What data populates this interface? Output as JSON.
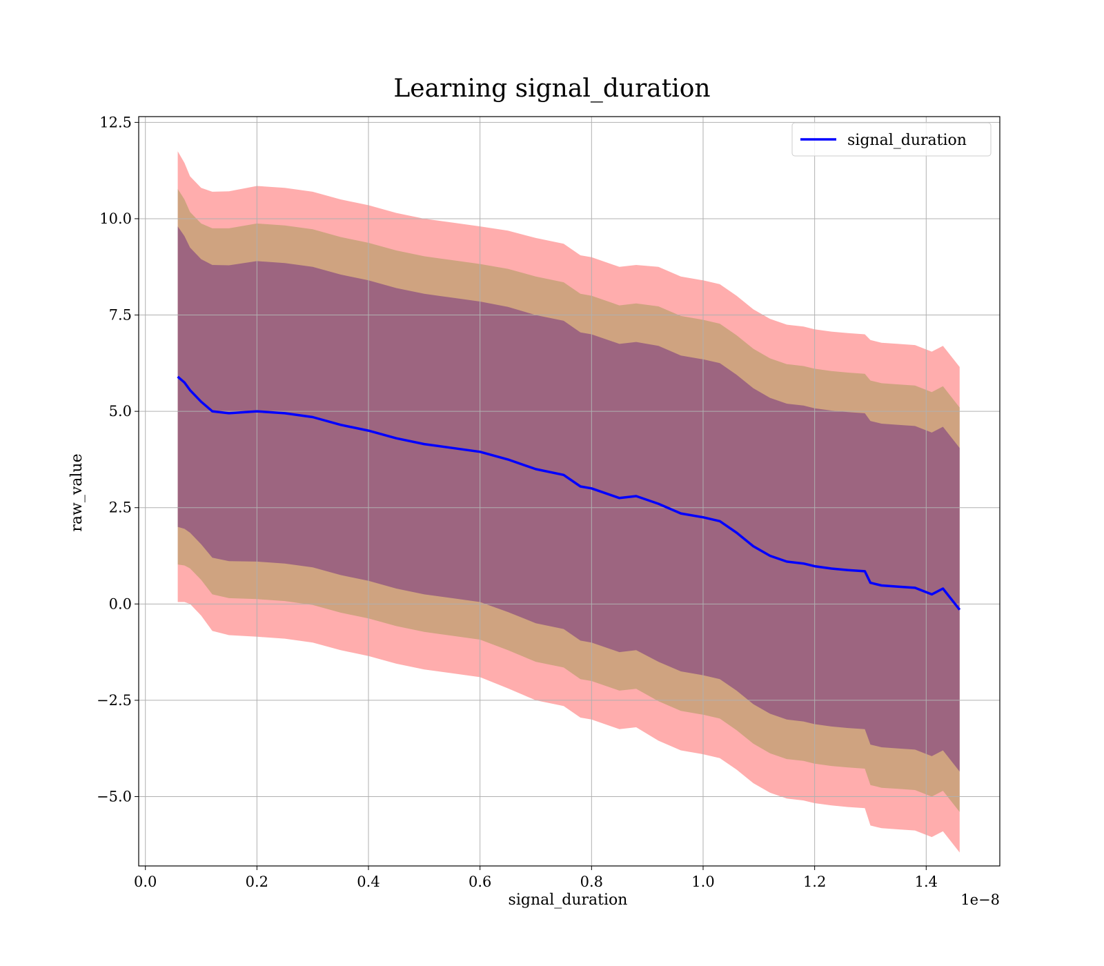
{
  "chart_data": {
    "type": "line",
    "title": "Learning signal_duration",
    "xlabel": "signal_duration",
    "ylabel": "raw_value",
    "x_offset_text": "1e−8",
    "xlim": [
      -0.012,
      1.532
    ],
    "ylim": [
      -6.8,
      12.65
    ],
    "x_ticks": [
      0.0,
      0.2,
      0.4,
      0.6,
      0.8,
      1.0,
      1.2,
      1.4
    ],
    "x_tick_labels": [
      "0.0",
      "0.2",
      "0.4",
      "0.6",
      "0.8",
      "1.0",
      "1.2",
      "1.4"
    ],
    "y_ticks": [
      -5.0,
      -2.5,
      0.0,
      2.5,
      5.0,
      7.5,
      10.0,
      12.5
    ],
    "y_tick_labels": [
      "−5.0",
      "−2.5",
      "0.0",
      "2.5",
      "5.0",
      "7.5",
      "10.0",
      "12.5"
    ],
    "grid": true,
    "legend": {
      "placement": "top-right",
      "entries": [
        "signal_duration"
      ]
    },
    "colors": {
      "line": "#0000ff",
      "band": "#ff0000",
      "inner_band": "#4b0082",
      "mid_band": "#6b8e23"
    },
    "series": [
      {
        "name": "signal_duration",
        "x": [
          0.058,
          0.07,
          0.08,
          0.1,
          0.12,
          0.15,
          0.2,
          0.25,
          0.3,
          0.35,
          0.4,
          0.45,
          0.5,
          0.55,
          0.6,
          0.65,
          0.7,
          0.75,
          0.78,
          0.8,
          0.85,
          0.88,
          0.92,
          0.96,
          1.0,
          1.03,
          1.06,
          1.09,
          1.12,
          1.15,
          1.18,
          1.2,
          1.23,
          1.26,
          1.29,
          1.3,
          1.32,
          1.35,
          1.38,
          1.41,
          1.43,
          1.46
        ],
        "y": [
          5.9,
          5.75,
          5.55,
          5.25,
          5.0,
          4.95,
          5.0,
          4.95,
          4.85,
          4.65,
          4.5,
          4.3,
          4.15,
          4.05,
          3.95,
          3.75,
          3.5,
          3.35,
          3.05,
          3.0,
          2.75,
          2.8,
          2.6,
          2.35,
          2.25,
          2.15,
          1.85,
          1.5,
          1.25,
          1.1,
          1.05,
          0.98,
          0.92,
          0.88,
          0.85,
          0.55,
          0.48,
          0.45,
          0.42,
          0.25,
          0.4,
          -0.15
        ],
        "std": [
          1.95,
          1.9,
          1.85,
          1.85,
          1.9,
          1.92,
          1.95,
          1.95,
          1.95,
          1.95,
          1.95,
          1.95,
          1.95,
          1.95,
          1.95,
          1.98,
          2.0,
          2.0,
          2.0,
          2.0,
          2.0,
          2.0,
          2.05,
          2.05,
          2.05,
          2.05,
          2.05,
          2.05,
          2.05,
          2.05,
          2.05,
          2.05,
          2.05,
          2.05,
          2.05,
          2.1,
          2.1,
          2.1,
          2.1,
          2.1,
          2.1,
          2.1
        ]
      }
    ]
  }
}
